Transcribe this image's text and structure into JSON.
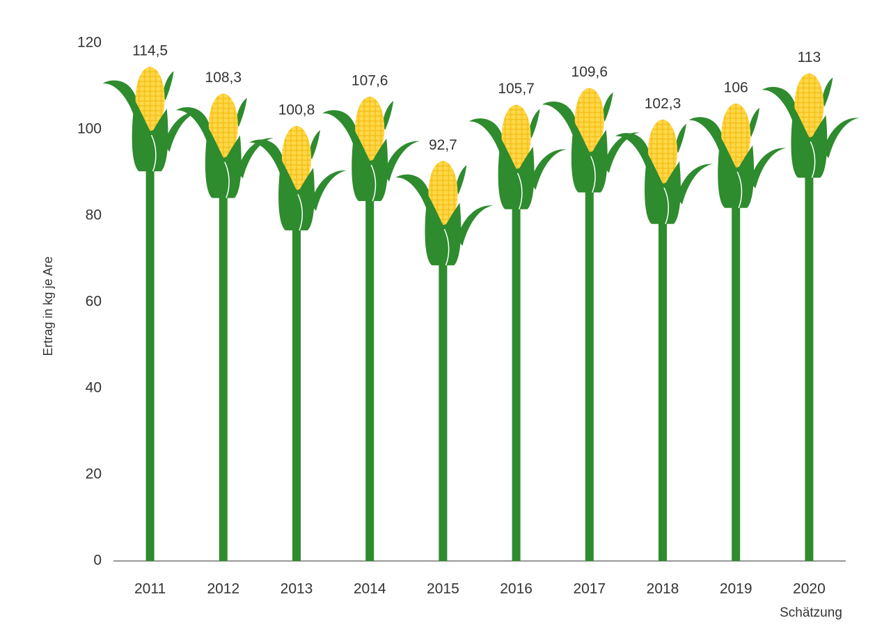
{
  "chart_data": {
    "type": "bar",
    "y_label": "Ertrag in kg je Are",
    "categories": [
      "2011",
      "2012",
      "2013",
      "2014",
      "2015",
      "2016",
      "2017",
      "2018",
      "2019",
      "2020"
    ],
    "annotation": "Schätzung",
    "values": [
      114.5,
      108.3,
      100.8,
      107.6,
      92.7,
      105.7,
      109.6,
      102.3,
      106,
      113
    ],
    "value_labels": [
      "114,5",
      "108,3",
      "100,8",
      "107,6",
      "92,7",
      "105,7",
      "109,6",
      "102,3",
      "106",
      "113"
    ],
    "color": "#2e8b2e",
    "ylim": [
      0,
      120
    ],
    "yticks": [
      0,
      20,
      40,
      60,
      80,
      100,
      120
    ],
    "grid": false
  }
}
